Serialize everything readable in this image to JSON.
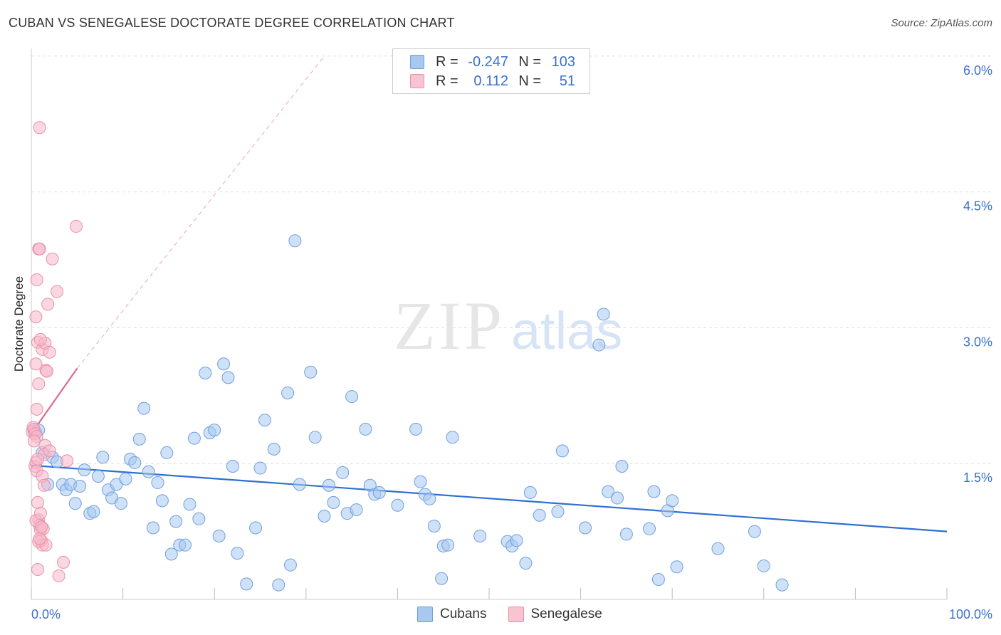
{
  "header": {
    "title": "CUBAN VS SENEGALESE DOCTORATE DEGREE CORRELATION CHART",
    "source": "Source: ZipAtlas.com"
  },
  "legend": {
    "rows": [
      {
        "r_label": "R =",
        "r_value": "-0.247",
        "n_label": "N =",
        "n_value": "103"
      },
      {
        "r_label": "R =",
        "r_value": "0.112",
        "n_label": "N =",
        "n_value": "51"
      }
    ]
  },
  "bottom_legend": {
    "cubans": "Cubans",
    "senegalese": "Senegalese"
  },
  "watermark": {
    "zip": "ZIP",
    "atlas": "atlas"
  },
  "colors": {
    "cubans_fill": "#a8c8f0",
    "cubans_stroke": "#6e9fe0",
    "cubans_line": "#2e6fd0",
    "senegalese_fill": "#f8b8c8",
    "senegalese_stroke": "#e890a8",
    "senegalese_line": "#e06890",
    "tick_label": "#3a6fd0",
    "grid": "#dddddd"
  },
  "chart_data": {
    "type": "scatter",
    "title": "CUBAN VS SENEGALESE DOCTORATE DEGREE CORRELATION CHART",
    "xlabel": "",
    "ylabel": "Doctorate Degree",
    "xlim": [
      0,
      100
    ],
    "ylim": [
      0,
      6.2
    ],
    "x_tick_labels": [
      "0.0%",
      "100.0%"
    ],
    "y_ticks": [
      1.5,
      3.0,
      4.5,
      6.0
    ],
    "y_tick_labels": [
      "1.5%",
      "3.0%",
      "4.5%",
      "6.0%"
    ],
    "grid": true,
    "legend_position": "top-center",
    "series": [
      {
        "name": "Cubans",
        "r": -0.247,
        "n": 103,
        "trend": {
          "x": [
            0,
            100
          ],
          "y": [
            1.48,
            0.75
          ]
        },
        "points": [
          [
            0.3,
            1.86
          ],
          [
            0.5,
            1.84
          ],
          [
            0.8,
            1.87
          ],
          [
            1.2,
            1.62
          ],
          [
            1.8,
            1.27
          ],
          [
            2.3,
            1.57
          ],
          [
            2.8,
            1.52
          ],
          [
            3.4,
            1.27
          ],
          [
            3.8,
            1.21
          ],
          [
            4.3,
            1.27
          ],
          [
            4.8,
            1.06
          ],
          [
            5.3,
            1.25
          ],
          [
            5.8,
            1.43
          ],
          [
            6.4,
            0.95
          ],
          [
            6.8,
            0.97
          ],
          [
            7.3,
            1.36
          ],
          [
            7.8,
            1.57
          ],
          [
            8.4,
            1.21
          ],
          [
            8.8,
            1.12
          ],
          [
            9.3,
            1.27
          ],
          [
            9.8,
            1.06
          ],
          [
            10.3,
            1.33
          ],
          [
            10.8,
            1.55
          ],
          [
            11.3,
            1.51
          ],
          [
            11.8,
            1.77
          ],
          [
            12.3,
            2.11
          ],
          [
            12.8,
            1.41
          ],
          [
            13.3,
            0.79
          ],
          [
            13.8,
            1.29
          ],
          [
            14.3,
            1.09
          ],
          [
            14.8,
            1.62
          ],
          [
            15.3,
            0.5
          ],
          [
            15.8,
            0.86
          ],
          [
            16.2,
            0.6
          ],
          [
            16.8,
            0.6
          ],
          [
            17.3,
            1.05
          ],
          [
            17.8,
            1.78
          ],
          [
            18.3,
            0.89
          ],
          [
            19,
            2.5
          ],
          [
            19.5,
            1.84
          ],
          [
            20,
            1.87
          ],
          [
            20.5,
            0.7
          ],
          [
            21,
            2.6
          ],
          [
            21.5,
            2.45
          ],
          [
            22,
            1.47
          ],
          [
            22.5,
            0.51
          ],
          [
            23.5,
            0.17
          ],
          [
            24.5,
            0.79
          ],
          [
            25,
            1.45
          ],
          [
            25.5,
            1.98
          ],
          [
            26.5,
            1.66
          ],
          [
            27,
            0.16
          ],
          [
            28,
            2.28
          ],
          [
            28.3,
            0.38
          ],
          [
            28.8,
            3.96
          ],
          [
            29.3,
            1.27
          ],
          [
            30.5,
            2.51
          ],
          [
            31,
            1.79
          ],
          [
            32,
            0.92
          ],
          [
            32.5,
            1.26
          ],
          [
            33,
            1.07
          ],
          [
            34,
            1.4
          ],
          [
            34.5,
            0.95
          ],
          [
            35,
            2.24
          ],
          [
            35.5,
            0.99
          ],
          [
            36.5,
            1.88
          ],
          [
            37,
            1.26
          ],
          [
            37.5,
            1.16
          ],
          [
            38,
            1.18
          ],
          [
            40,
            1.04
          ],
          [
            42,
            1.88
          ],
          [
            42.5,
            1.3
          ],
          [
            43,
            1.16
          ],
          [
            43.5,
            1.11
          ],
          [
            44,
            0.81
          ],
          [
            44.8,
            0.23
          ],
          [
            45,
            0.59
          ],
          [
            45.5,
            0.6
          ],
          [
            46,
            1.79
          ],
          [
            49,
            0.7
          ],
          [
            52,
            0.64
          ],
          [
            52.5,
            0.59
          ],
          [
            53,
            0.65
          ],
          [
            54,
            0.4
          ],
          [
            54.5,
            1.18
          ],
          [
            55.5,
            0.93
          ],
          [
            57.5,
            0.97
          ],
          [
            58,
            1.64
          ],
          [
            60.5,
            0.79
          ],
          [
            62,
            2.81
          ],
          [
            62.5,
            3.15
          ],
          [
            63,
            1.19
          ],
          [
            64,
            1.12
          ],
          [
            64.5,
            1.47
          ],
          [
            65,
            0.72
          ],
          [
            67.5,
            0.78
          ],
          [
            68,
            1.19
          ],
          [
            68.5,
            0.22
          ],
          [
            69.5,
            0.98
          ],
          [
            70,
            1.09
          ],
          [
            70.5,
            0.36
          ],
          [
            75,
            0.56
          ],
          [
            79,
            0.75
          ],
          [
            80,
            0.37
          ],
          [
            82,
            0.16
          ]
        ]
      },
      {
        "name": "Senegalese",
        "r": 0.112,
        "n": 51,
        "trend": {
          "x": [
            0,
            5
          ],
          "y": [
            1.83,
            2.55
          ],
          "dashed_extension": {
            "x": [
              5,
              32
            ],
            "y": [
              2.55,
              6.0
            ]
          }
        },
        "points": [
          [
            0.1,
            1.85
          ],
          [
            0.2,
            1.9
          ],
          [
            0.3,
            1.88
          ],
          [
            0.4,
            1.83
          ],
          [
            0.5,
            2.6
          ],
          [
            0.6,
            1.8
          ],
          [
            0.7,
            2.84
          ],
          [
            0.8,
            3.87
          ],
          [
            0.9,
            3.87
          ],
          [
            0.5,
            3.12
          ],
          [
            0.4,
            1.47
          ],
          [
            0.5,
            1.51
          ],
          [
            0.6,
            1.42
          ],
          [
            0.7,
            1.07
          ],
          [
            0.8,
            0.88
          ],
          [
            0.9,
            0.82
          ],
          [
            1.0,
            0.77
          ],
          [
            1.1,
            0.65
          ],
          [
            1.2,
            0.6
          ],
          [
            0.7,
            0.33
          ],
          [
            0.8,
            0.64
          ],
          [
            0.5,
            0.87
          ],
          [
            1.2,
            1.36
          ],
          [
            1.4,
            1.26
          ],
          [
            0.9,
            5.21
          ],
          [
            0.6,
            3.53
          ],
          [
            0.8,
            2.38
          ],
          [
            1.2,
            2.76
          ],
          [
            1.5,
            2.83
          ],
          [
            1.0,
            2.87
          ],
          [
            1.6,
            2.53
          ],
          [
            1.7,
            2.52
          ],
          [
            2.0,
            2.73
          ],
          [
            1.8,
            3.26
          ],
          [
            2.3,
            3.76
          ],
          [
            2.8,
            3.4
          ],
          [
            3.0,
            0.26
          ],
          [
            3.5,
            0.41
          ],
          [
            3.9,
            1.53
          ],
          [
            4.9,
            4.12
          ],
          [
            1.6,
            0.6
          ],
          [
            1.5,
            1.7
          ],
          [
            1.4,
            1.6
          ],
          [
            1.3,
            0.78
          ],
          [
            1.0,
            0.95
          ],
          [
            0.9,
            0.67
          ],
          [
            0.6,
            2.1
          ],
          [
            0.3,
            1.75
          ],
          [
            0.7,
            1.55
          ],
          [
            2.0,
            1.64
          ],
          [
            1.1,
            0.8
          ]
        ]
      }
    ]
  }
}
